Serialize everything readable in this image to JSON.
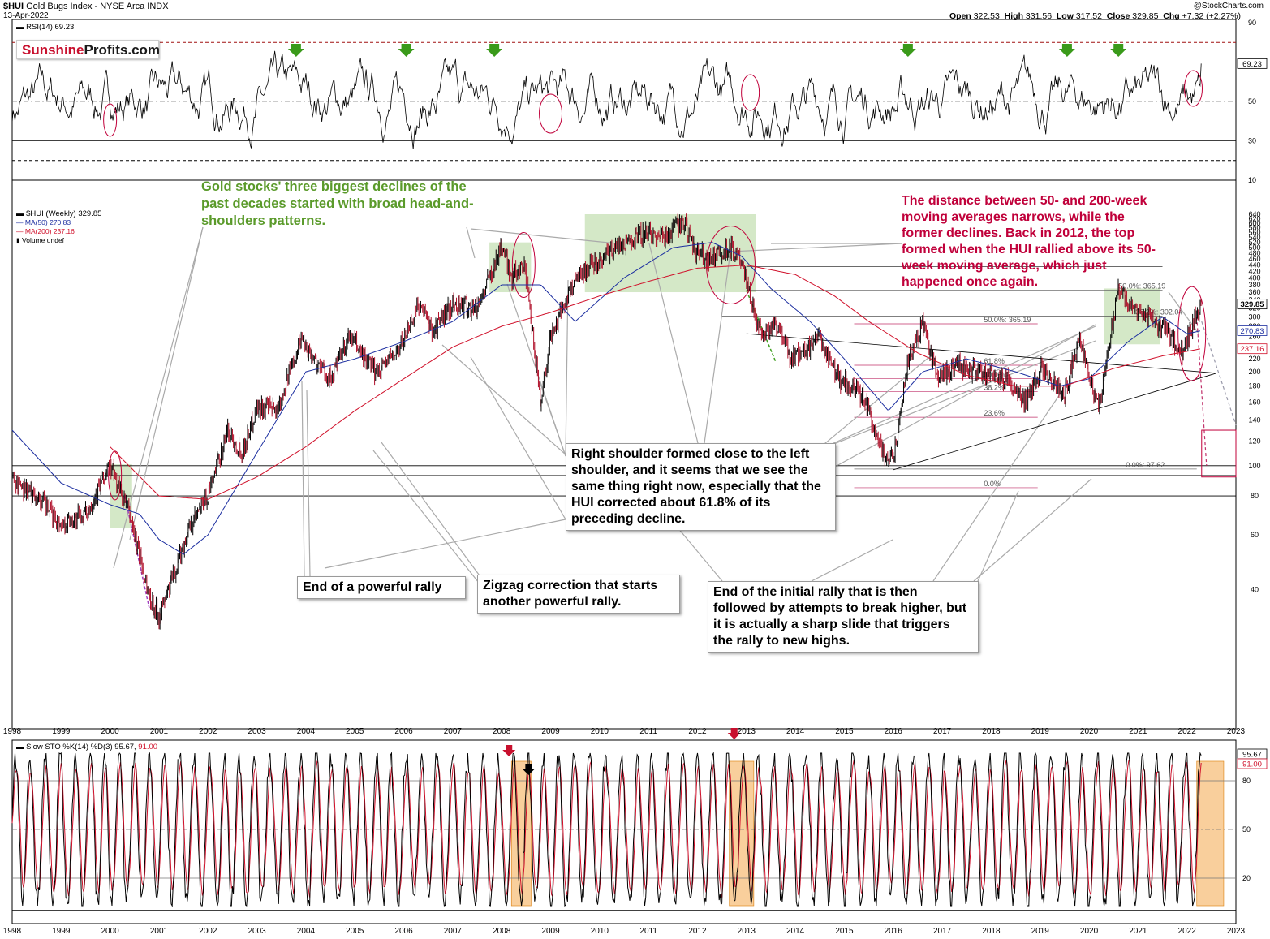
{
  "header": {
    "symbol": "$HUI",
    "name": "Gold Bugs Index - NYSE Arca INDX",
    "date": "13-Apr-2022",
    "brand": "@StockCharts.com",
    "open_label": "Open",
    "open": "322.53",
    "high_label": "High",
    "high": "331.56",
    "low_label": "Low",
    "low": "317.52",
    "close_label": "Close",
    "close": "329.85",
    "chg_label": "Chg",
    "chg": "+7.32 (+2.27%)"
  },
  "logo": {
    "part1": "Sunshine",
    "part2": "Profits.com"
  },
  "colors": {
    "price": "#000000",
    "ma50": "#1c2ea0",
    "ma200": "#d0102a",
    "callout_red": "#c0003a",
    "callout_green": "#5a9a2a",
    "zone_green": "#9fcb82",
    "zone_orange": "#f4a84a"
  },
  "rsi_panel": {
    "legend": "RSI(14) 69.23",
    "value_tag": "69.23",
    "ticks": [
      "90",
      "70",
      "50",
      "30",
      "10"
    ]
  },
  "price_panel": {
    "legend_main": "$HUI (Weekly) 329.85",
    "legend_ma50": "MA(50) 270.83",
    "legend_ma200": "MA(200) 237.16",
    "legend_volume": "Volume undef",
    "tags": {
      "close": "329.85",
      "ma50": "270.83",
      "ma200": "237.16"
    },
    "fib_labels": [
      "50.0%: 365.19",
      "38.2%: 302.04",
      "100.0%",
      "61.8%",
      "50.0%",
      "38.2%",
      "23.6%",
      "0.0%: 97.62",
      "0.0%"
    ]
  },
  "stoch_panel": {
    "legend": "Slow STO %K(14) %D(3) 95.67, 91.00",
    "legend_k": "Slow STO %K(14) %D(3) 95.67,",
    "legend_d": "91.00",
    "tags": {
      "k": "95.67",
      "d": "91.00"
    },
    "ticks": [
      "80",
      "50",
      "20"
    ]
  },
  "callouts": {
    "green": "Gold stocks' three biggest declines of the past decades started with broad head-and-shoulders patterns.",
    "red": "The distance between 50- and 200-week moving averages narrows, while the former declines. Back in 2012, the top formed when the HUI rallied above its 50-week moving average, which just happened once again.",
    "shoulder": "Right shoulder formed close to the left shoulder, and it seems that we see the same thing right now, especially that the HUI corrected about 61.8% of its preceding decline.",
    "rally_end": "End of a powerful rally",
    "zigzag": "Zigzag correction that starts another powerful rally.",
    "initial_rally": "End of the initial rally that is then followed by attempts to break higher, but it is actually a sharp slide that triggers the rally to new highs."
  },
  "chart_data": [
    {
      "type": "line",
      "title": "$HUI (Weekly) 329.85",
      "scale": "log",
      "x_ticks": [
        "1998",
        "1999",
        "2000",
        "2001",
        "2002",
        "2003",
        "2004",
        "2005",
        "2006",
        "2007",
        "2008",
        "2009",
        "2010",
        "2011",
        "2012",
        "2013",
        "2014",
        "2015",
        "2016",
        "2017",
        "2018",
        "2019",
        "2020",
        "2021",
        "2022",
        "2023"
      ],
      "y_ticks": [
        640,
        620,
        600,
        580,
        560,
        540,
        520,
        500,
        480,
        460,
        440,
        420,
        400,
        380,
        360,
        340,
        320,
        300,
        280,
        260,
        240,
        220,
        200,
        180,
        160,
        140,
        120,
        100,
        80,
        60,
        40
      ],
      "ylim": [
        30,
        660
      ],
      "series": [
        {
          "name": "$HUI (Weekly)",
          "x": [
            1998.0,
            1998.5,
            1999.0,
            1999.5,
            2000.0,
            2000.4,
            2000.6,
            2000.8,
            2001.0,
            2001.3,
            2001.6,
            2002.0,
            2002.4,
            2002.7,
            2003.0,
            2003.4,
            2003.9,
            2004.2,
            2004.5,
            2004.9,
            2005.4,
            2005.9,
            2006.3,
            2006.6,
            2007.0,
            2007.5,
            2008.0,
            2008.2,
            2008.45,
            2008.8,
            2009.0,
            2009.5,
            2009.9,
            2010.5,
            2010.9,
            2011.3,
            2011.7,
            2011.9,
            2012.2,
            2012.5,
            2012.7,
            2012.9,
            2013.3,
            2013.6,
            2013.9,
            2014.3,
            2014.5,
            2014.9,
            2015.4,
            2015.8,
            2016.0,
            2016.3,
            2016.6,
            2016.9,
            2017.3,
            2017.8,
            2018.3,
            2018.7,
            2019.0,
            2019.5,
            2019.8,
            2020.2,
            2020.5,
            2020.6,
            2020.9,
            2021.3,
            2021.6,
            2021.9,
            2022.1,
            2022.29
          ],
          "values": [
            90,
            80,
            65,
            70,
            100,
            70,
            52,
            38,
            33,
            45,
            62,
            80,
            130,
            110,
            155,
            150,
            258,
            215,
            190,
            260,
            200,
            235,
            330,
            270,
            330,
            320,
            510,
            400,
            450,
            160,
            260,
            400,
            450,
            520,
            560,
            540,
            610,
            500,
            460,
            480,
            510,
            440,
            260,
            290,
            220,
            240,
            255,
            190,
            165,
            110,
            105,
            215,
            285,
            190,
            210,
            200,
            190,
            160,
            205,
            170,
            260,
            150,
            300,
            370,
            320,
            290,
            270,
            230,
            280,
            329.85
          ]
        },
        {
          "name": "MA(50)",
          "x": [
            1998.0,
            1999.0,
            2000.0,
            2000.6,
            2001.0,
            2001.5,
            2002.0,
            2003.0,
            2004.0,
            2005.0,
            2006.0,
            2007.0,
            2008.0,
            2008.8,
            2009.5,
            2010.5,
            2011.5,
            2012.3,
            2012.9,
            2013.5,
            2014.3,
            2015.0,
            2015.9,
            2016.6,
            2017.5,
            2018.5,
            2019.4,
            2020.0,
            2020.8,
            2021.5,
            2022.0,
            2022.29
          ],
          "values": [
            130,
            88,
            75,
            70,
            58,
            52,
            60,
            110,
            200,
            220,
            250,
            290,
            380,
            380,
            290,
            400,
            500,
            520,
            470,
            370,
            290,
            220,
            150,
            200,
            220,
            200,
            180,
            190,
            250,
            300,
            265,
            270.83
          ]
        },
        {
          "name": "MA(200)",
          "x": [
            2000.0,
            2001.0,
            2002.0,
            2003.0,
            2004.0,
            2005.0,
            2006.0,
            2007.0,
            2008.0,
            2009.0,
            2010.0,
            2011.0,
            2012.0,
            2013.0,
            2014.0,
            2014.8,
            2015.5,
            2016.5,
            2017.5,
            2018.5,
            2019.5,
            2020.5,
            2021.5,
            2022.29
          ],
          "values": [
            115,
            80,
            78,
            92,
            115,
            150,
            190,
            240,
            280,
            310,
            350,
            390,
            430,
            440,
            410,
            350,
            290,
            230,
            195,
            180,
            180,
            205,
            225,
            237.16
          ]
        }
      ]
    },
    {
      "type": "line",
      "title": "RSI(14) 69.23",
      "ylim": [
        10,
        90
      ],
      "y_ticks": [
        90,
        70,
        50,
        30,
        10
      ],
      "series": [
        {
          "name": "RSI(14)",
          "last_value": 69.23
        }
      ]
    },
    {
      "type": "line",
      "title": "Slow STO %K(14) %D(3) 95.67, 91.00",
      "ylim": [
        0,
        100
      ],
      "y_ticks": [
        80,
        50,
        20
      ],
      "series": [
        {
          "name": "%K(14)",
          "last_value": 95.67
        },
        {
          "name": "%D(3)",
          "last_value": 91.0
        }
      ]
    }
  ]
}
